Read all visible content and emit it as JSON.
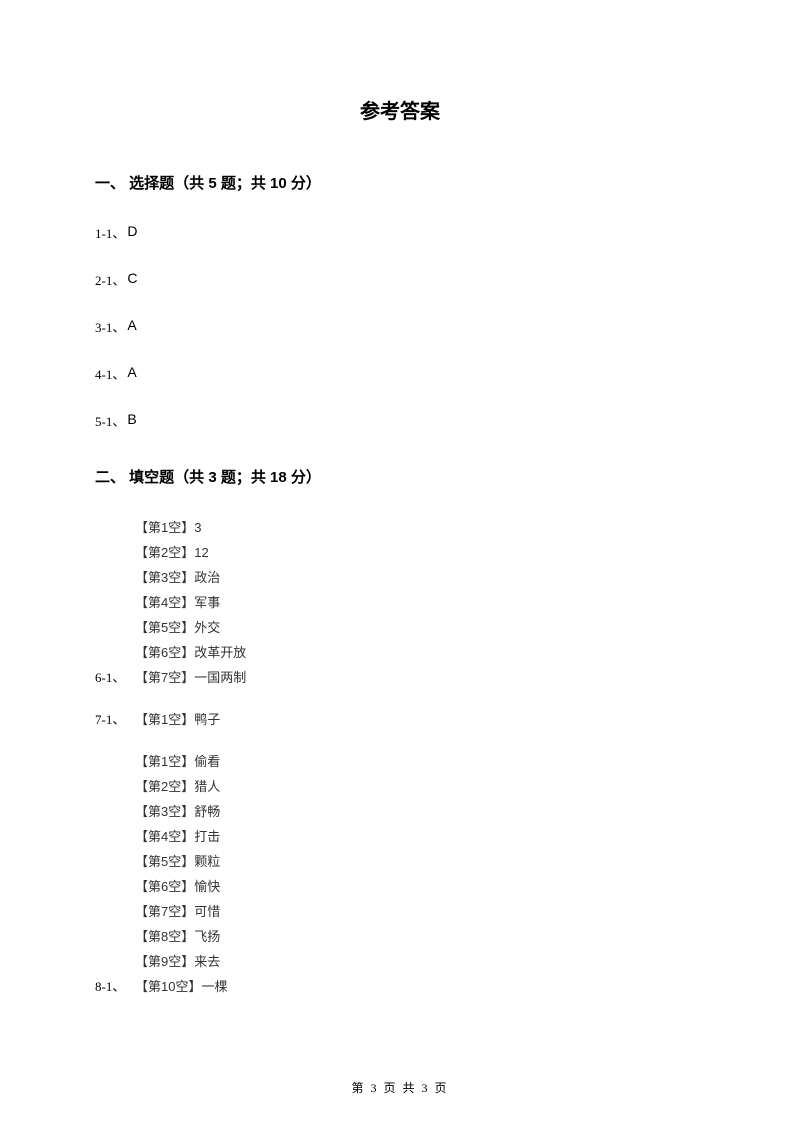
{
  "title": "参考答案",
  "section1": {
    "header": "一、 选择题（共 5 题；共 10 分）",
    "answers": [
      {
        "label": "1-1、",
        "value": "D"
      },
      {
        "label": "2-1、",
        "value": "C"
      },
      {
        "label": "3-1、",
        "value": "A"
      },
      {
        "label": "4-1、",
        "value": "A"
      },
      {
        "label": "5-1、",
        "value": "B"
      }
    ]
  },
  "section2": {
    "header": "二、 填空题（共 3 题；共 18 分）",
    "items": [
      {
        "label": "6-1、",
        "blanks": [
          "【第1空】3",
          "【第2空】12",
          "【第3空】政治",
          "【第4空】军事",
          "【第5空】外交",
          "【第6空】改革开放",
          "【第7空】一国两制"
        ]
      },
      {
        "label": "7-1、",
        "blanks": [
          "【第1空】鸭子"
        ]
      },
      {
        "label": "8-1、",
        "blanks": [
          "【第1空】偷看",
          "【第2空】猎人",
          "【第3空】舒畅",
          "【第4空】打击",
          "【第5空】颗粒",
          "【第6空】愉快",
          "【第7空】可惜",
          "【第8空】飞扬",
          "【第9空】来去",
          "【第10空】一棵"
        ]
      }
    ]
  },
  "footer": "第 3 页 共 3 页"
}
